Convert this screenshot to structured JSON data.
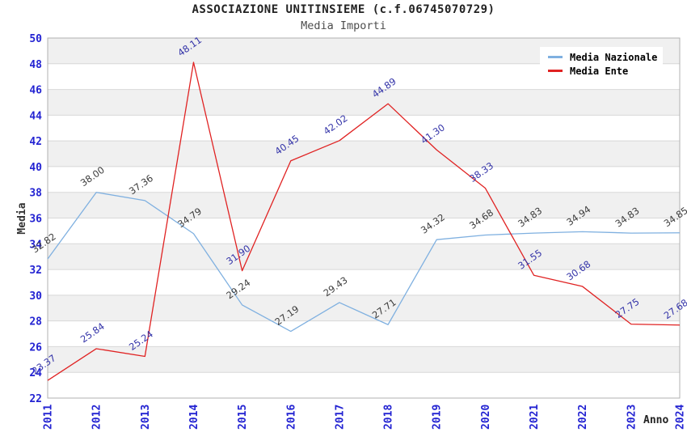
{
  "header": {
    "title": "ASSOCIAZIONE UNITINSIEME (c.f.06745070729)",
    "subtitle": "Media Importi"
  },
  "chart_data": {
    "type": "line",
    "title": "ASSOCIAZIONE UNITINSIEME (c.f.06745070729)",
    "subtitle": "Media Importi",
    "xlabel": "Anno",
    "ylabel": "Media",
    "categories": [
      "2011",
      "2012",
      "2013",
      "2014",
      "2015",
      "2016",
      "2017",
      "2018",
      "2019",
      "2020",
      "2021",
      "2022",
      "2023",
      "2024"
    ],
    "series": [
      {
        "name": "Media Nazionale",
        "color": "#7fb0e0",
        "label_color": "#3c3c3c",
        "values": [
          32.82,
          38.0,
          37.36,
          34.79,
          29.24,
          27.19,
          29.43,
          27.71,
          34.32,
          34.68,
          34.83,
          34.94,
          34.83,
          34.85
        ]
      },
      {
        "name": "Media Ente",
        "color": "#e02222",
        "label_color": "#3333a8",
        "values": [
          23.37,
          25.84,
          25.24,
          48.11,
          31.9,
          40.45,
          42.02,
          44.89,
          41.3,
          38.33,
          31.55,
          30.68,
          27.75,
          27.68
        ]
      }
    ],
    "ylim": [
      22,
      50
    ],
    "ytick_step": 2,
    "grid": true,
    "legend_position": "top-right",
    "value_label_decimals": 2,
    "colors": {
      "band": "#f0f0f0",
      "grid": "#d8d8d8",
      "plot_border": "#b0b0b0",
      "tick_label": "#2323d2"
    }
  }
}
